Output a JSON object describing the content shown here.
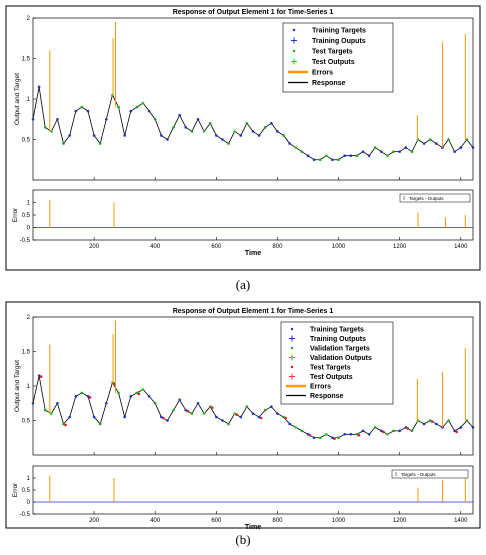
{
  "captions": [
    "(a)",
    "(b)"
  ],
  "chart_data": [
    {
      "type": "line",
      "title": "Response of Output Element 1 for Time-Series 1",
      "ylabel": "Output and Target",
      "xlabel": "Time",
      "error_ylabel": "Error",
      "xlim": [
        0,
        1440
      ],
      "ylim": [
        0,
        2
      ],
      "error_ylim": [
        -0.5,
        1.5
      ],
      "xticks": [
        200,
        400,
        600,
        800,
        1000,
        1200,
        1400
      ],
      "yticks": [
        0.5,
        1,
        1.5,
        2
      ],
      "error_yticks": [
        -0.5,
        0,
        0.5,
        1
      ],
      "legend": [
        "Training Targets",
        "Training Ouputs",
        "Test Targets",
        "Test Outputs",
        "Errors",
        "Response"
      ],
      "legend_colors": [
        "#1a33cc",
        "#1a33cc",
        "#1aa61a",
        "#1fcc1f",
        "#ff9900",
        "#000000"
      ],
      "error_legend": "Targets - Outputs",
      "x": [
        0,
        20,
        40,
        60,
        80,
        100,
        120,
        140,
        160,
        180,
        200,
        220,
        240,
        260,
        280,
        300,
        320,
        340,
        360,
        380,
        400,
        420,
        440,
        460,
        480,
        500,
        520,
        540,
        560,
        580,
        600,
        620,
        640,
        660,
        680,
        700,
        720,
        740,
        760,
        780,
        800,
        820,
        840,
        860,
        880,
        900,
        920,
        940,
        960,
        980,
        1000,
        1020,
        1040,
        1060,
        1080,
        1100,
        1120,
        1140,
        1160,
        1180,
        1200,
        1220,
        1240,
        1260,
        1280,
        1300,
        1320,
        1340,
        1360,
        1380,
        1400,
        1420,
        1440
      ],
      "response": [
        0.75,
        1.15,
        0.65,
        0.6,
        0.75,
        0.45,
        0.55,
        0.85,
        0.9,
        0.85,
        0.55,
        0.45,
        0.75,
        1.05,
        0.9,
        0.55,
        0.85,
        0.9,
        0.95,
        0.85,
        0.75,
        0.55,
        0.5,
        0.65,
        0.8,
        0.65,
        0.6,
        0.75,
        0.6,
        0.7,
        0.55,
        0.5,
        0.45,
        0.6,
        0.55,
        0.7,
        0.6,
        0.55,
        0.65,
        0.7,
        0.6,
        0.55,
        0.45,
        0.4,
        0.35,
        0.3,
        0.25,
        0.25,
        0.3,
        0.25,
        0.25,
        0.3,
        0.3,
        0.3,
        0.35,
        0.3,
        0.4,
        0.35,
        0.3,
        0.35,
        0.35,
        0.4,
        0.35,
        0.5,
        0.45,
        0.5,
        0.45,
        0.4,
        0.5,
        0.35,
        0.4,
        0.5,
        0.4
      ],
      "error_spikes": [
        {
          "x": 55,
          "y": 1.1
        },
        {
          "x": 265,
          "y": 1.0
        },
        {
          "x": 1260,
          "y": 0.6
        },
        {
          "x": 1350,
          "y": 0.4
        },
        {
          "x": 1415,
          "y": 0.5
        }
      ],
      "output_spikes": [
        {
          "x": 55,
          "y": 1.6
        },
        {
          "x": 262,
          "y": 1.75
        },
        {
          "x": 270,
          "y": 1.95
        },
        {
          "x": 1258,
          "y": 0.8
        },
        {
          "x": 1340,
          "y": 1.7
        },
        {
          "x": 1415,
          "y": 1.8
        }
      ]
    },
    {
      "type": "line",
      "title": "Response of Output Element 1 for Time-Series 1",
      "ylabel": "Output and Target",
      "xlabel": "Time",
      "error_ylabel": "Error",
      "xlim": [
        0,
        1440
      ],
      "ylim": [
        0,
        2
      ],
      "error_ylim": [
        -0.5,
        1.5
      ],
      "xticks": [
        200,
        400,
        600,
        800,
        1000,
        1200,
        1400
      ],
      "yticks": [
        0.5,
        1,
        1.5,
        2
      ],
      "error_yticks": [
        -0.5,
        0,
        0.5,
        1
      ],
      "legend": [
        "Training Targets",
        "Training Outputs",
        "Validation Targets",
        "Validation Outputs",
        "Test Targets",
        "Test Outputs",
        "Errors",
        "Response"
      ],
      "legend_colors": [
        "#1a33cc",
        "#1a33cc",
        "#1aa61a",
        "#1fcc1f",
        "#e61a1a",
        "#ff3333",
        "#ff9900",
        "#000000"
      ],
      "error_legend": "Targets - Outputs",
      "x": [
        0,
        20,
        40,
        60,
        80,
        100,
        120,
        140,
        160,
        180,
        200,
        220,
        240,
        260,
        280,
        300,
        320,
        340,
        360,
        380,
        400,
        420,
        440,
        460,
        480,
        500,
        520,
        540,
        560,
        580,
        600,
        620,
        640,
        660,
        680,
        700,
        720,
        740,
        760,
        780,
        800,
        820,
        840,
        860,
        880,
        900,
        920,
        940,
        960,
        980,
        1000,
        1020,
        1040,
        1060,
        1080,
        1100,
        1120,
        1140,
        1160,
        1180,
        1200,
        1220,
        1240,
        1260,
        1280,
        1300,
        1320,
        1340,
        1360,
        1380,
        1400,
        1420,
        1440
      ],
      "response": [
        0.75,
        1.15,
        0.65,
        0.6,
        0.75,
        0.45,
        0.55,
        0.85,
        0.9,
        0.85,
        0.55,
        0.45,
        0.75,
        1.05,
        0.9,
        0.55,
        0.85,
        0.9,
        0.95,
        0.85,
        0.75,
        0.55,
        0.5,
        0.65,
        0.8,
        0.65,
        0.6,
        0.75,
        0.6,
        0.7,
        0.55,
        0.5,
        0.45,
        0.6,
        0.55,
        0.7,
        0.6,
        0.55,
        0.65,
        0.7,
        0.6,
        0.55,
        0.45,
        0.4,
        0.35,
        0.3,
        0.25,
        0.25,
        0.3,
        0.25,
        0.25,
        0.3,
        0.3,
        0.3,
        0.35,
        0.3,
        0.4,
        0.35,
        0.3,
        0.35,
        0.35,
        0.4,
        0.35,
        0.5,
        0.45,
        0.5,
        0.45,
        0.4,
        0.5,
        0.35,
        0.4,
        0.5,
        0.4
      ],
      "error_spikes": [
        {
          "x": 55,
          "y": 1.1
        },
        {
          "x": 265,
          "y": 1.0
        },
        {
          "x": 1260,
          "y": 0.6
        },
        {
          "x": 1340,
          "y": 0.9
        },
        {
          "x": 1415,
          "y": 1.05
        }
      ],
      "output_spikes": [
        {
          "x": 55,
          "y": 1.6
        },
        {
          "x": 262,
          "y": 1.75
        },
        {
          "x": 270,
          "y": 1.95
        },
        {
          "x": 1258,
          "y": 1.1
        },
        {
          "x": 1340,
          "y": 1.2
        },
        {
          "x": 1415,
          "y": 1.55
        }
      ]
    }
  ]
}
